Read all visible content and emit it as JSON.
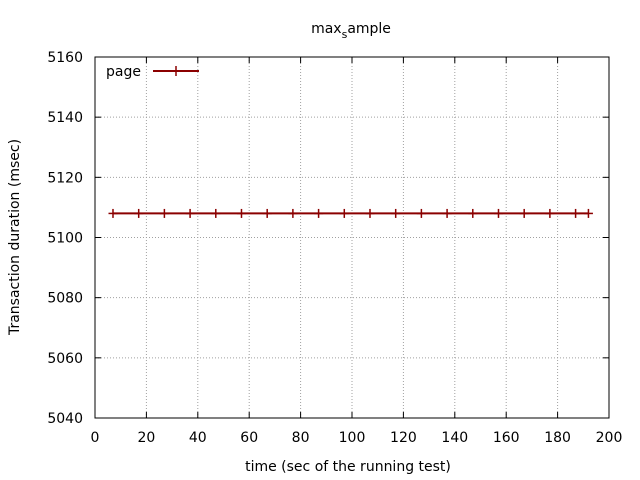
{
  "chart_data": {
    "type": "line",
    "title_main": "max",
    "title_sub": "s",
    "title_rest": "ample",
    "xlabel": "time (sec of the running test)",
    "ylabel": "Transaction duration (msec)",
    "xlim": [
      0,
      200
    ],
    "ylim": [
      5040,
      5160
    ],
    "x_ticks": [
      0,
      20,
      40,
      60,
      80,
      100,
      120,
      140,
      160,
      180,
      200
    ],
    "y_ticks": [
      5040,
      5060,
      5080,
      5100,
      5120,
      5140,
      5160
    ],
    "grid": true,
    "legend_position": "top-left",
    "series": [
      {
        "name": "page",
        "color": "#8b0000",
        "marker": "plus",
        "x": [
          7,
          17,
          27,
          37,
          47,
          57,
          67,
          77,
          87,
          97,
          107,
          117,
          127,
          137,
          147,
          157,
          167,
          177,
          187,
          192
        ],
        "y": [
          5108,
          5108,
          5108,
          5108,
          5108,
          5108,
          5108,
          5108,
          5108,
          5108,
          5108,
          5108,
          5108,
          5108,
          5108,
          5108,
          5108,
          5108,
          5108,
          5108
        ]
      }
    ]
  }
}
